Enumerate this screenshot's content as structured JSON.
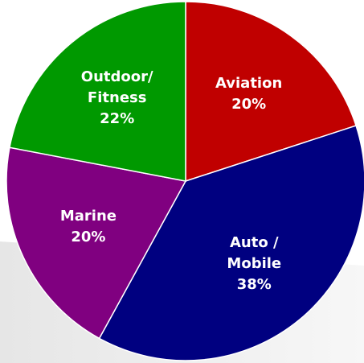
{
  "chart_data": {
    "type": "pie",
    "categories": [
      "Aviation",
      "Auto /\nMobile",
      "Marine",
      "Outdoor/\nFitness"
    ],
    "values": [
      20,
      38,
      20,
      22
    ],
    "value_labels": [
      "20%",
      "38%",
      "20%",
      "22%"
    ],
    "colors": [
      "#c00000",
      "#000080",
      "#800080",
      "#009900"
    ]
  }
}
